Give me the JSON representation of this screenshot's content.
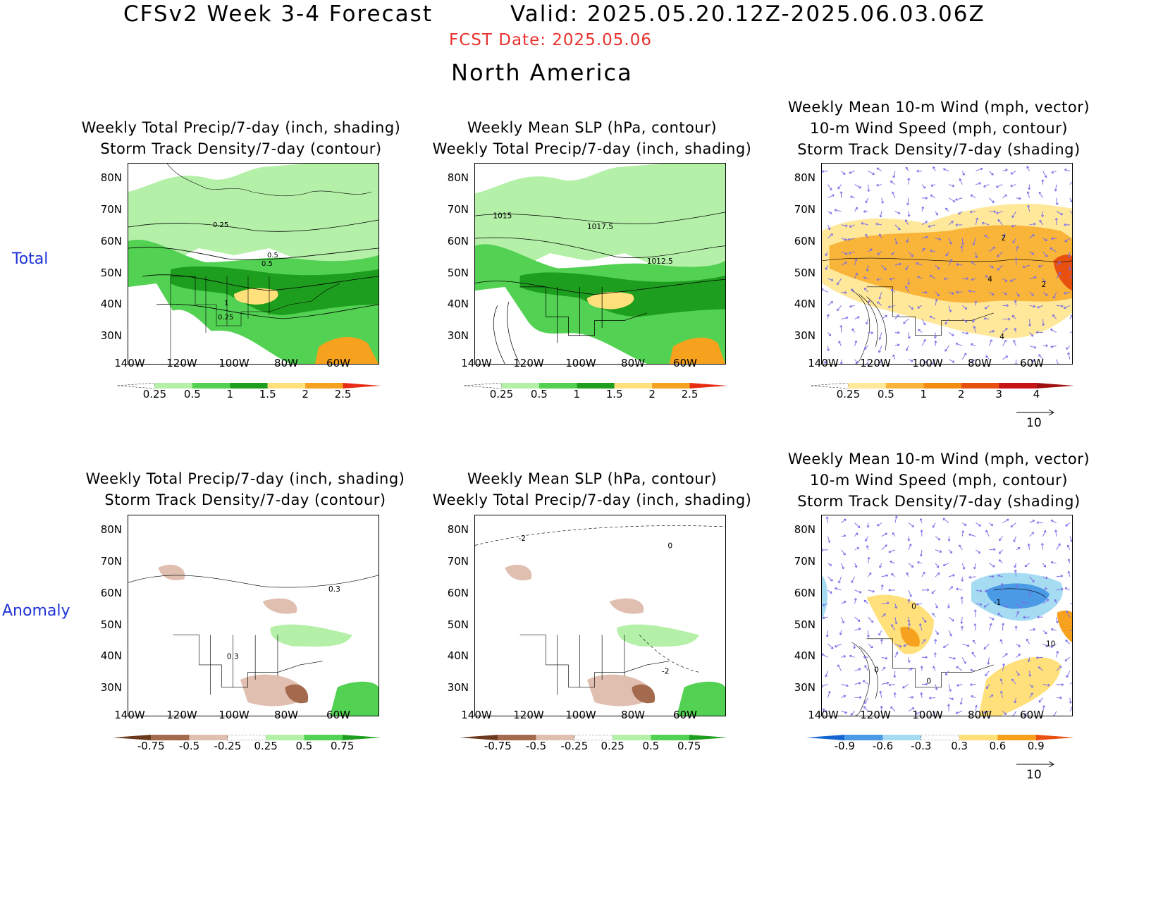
{
  "header": {
    "title_left": "CFSv2 Week 3-4 Forecast",
    "title_right": "Valid: 2025.05.20.12Z-2025.06.03.06Z",
    "fcst_date": "FCST Date: 2025.05.06",
    "region": "North America",
    "fcst_color": "#e8322e"
  },
  "rows": [
    {
      "label": "Total"
    },
    {
      "label": "Anomaly"
    }
  ],
  "panel_titles": {
    "precip": [
      "Weekly Total Precip/7-day (inch, shading)",
      "Storm Track Density/7-day (contour)"
    ],
    "slp": [
      "Weekly Mean SLP (hPa, contour)",
      "Weekly Total Precip/7-day (inch, shading)"
    ],
    "wind": [
      "Weekly Mean 10-m Wind (mph, vector)",
      "10-m Wind Speed (mph, contour)",
      "Storm Track Density/7-day (shading)"
    ]
  },
  "axes": {
    "lat_ticks": [
      "80N",
      "70N",
      "60N",
      "50N",
      "40N",
      "30N"
    ],
    "lon_ticks": [
      "140W",
      "120W",
      "100W",
      "80W",
      "60W"
    ]
  },
  "contour_labels": {
    "total_precip": [
      "0.25",
      "0.5",
      "0.5",
      "1",
      "0.25"
    ],
    "total_slp": [
      "1015",
      "1017.5",
      "1012.5"
    ],
    "total_wind": [
      "2",
      "4",
      "2",
      "4"
    ],
    "anom_precip": [
      "0.3",
      "0.3"
    ],
    "anom_slp": [
      "-2",
      "0",
      "-2"
    ],
    "anom_wind": [
      "0",
      "-1",
      "0",
      "10",
      "0"
    ]
  },
  "colorbars": {
    "precip_total": {
      "labels": [
        "0.25",
        "0.5",
        "1",
        "1.5",
        "2",
        "2.5"
      ],
      "colors": [
        "#ffffff",
        "#b4f0a8",
        "#52d152",
        "#1e9e1e",
        "#ffe07a",
        "#f7a21e",
        "#e82c14"
      ]
    },
    "wind_total": {
      "labels": [
        "0.25",
        "0.5",
        "1",
        "2",
        "3",
        "4"
      ],
      "colors": [
        "#ffffff",
        "#ffe89a",
        "#f9b43a",
        "#f58c12",
        "#e85010",
        "#c81414",
        "#a01010"
      ]
    },
    "precip_anom": {
      "labels": [
        "-0.75",
        "-0.5",
        "-0.25",
        "0.25",
        "0.5",
        "0.75"
      ],
      "colors": [
        "#6b3a1e",
        "#a36a4e",
        "#e0bfb0",
        "#ffffff",
        "#b4f0a8",
        "#52d152",
        "#1e9e1e"
      ]
    },
    "wind_anom": {
      "labels": [
        "-0.9",
        "-0.6",
        "-0.3",
        "0.3",
        "0.6",
        "0.9"
      ],
      "colors": [
        "#1464d2",
        "#4a9ae6",
        "#a6dcf2",
        "#ffffff",
        "#ffe07a",
        "#f7a21e",
        "#e85010"
      ]
    }
  },
  "vector_ref": "10",
  "colors": {
    "wind_vector": "#7a6ee8",
    "row_label": "#1f32d6"
  }
}
